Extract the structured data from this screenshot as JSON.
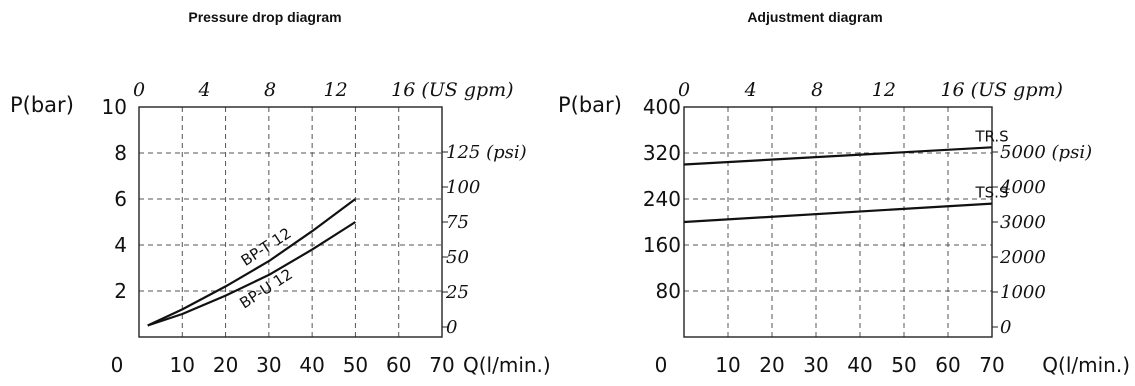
{
  "chart_data": [
    {
      "type": "line",
      "title": "Pressure drop diagram",
      "ylabel": "P(bar)",
      "xlabel": "Q(l/min.)",
      "x_origin_label": "0",
      "ylim": [
        0,
        10
      ],
      "xlim": [
        0,
        70
      ],
      "x_ticks": [
        10,
        20,
        30,
        40,
        50,
        60,
        70
      ],
      "y_ticks": [
        2,
        4,
        6,
        8,
        10
      ],
      "top_axis": {
        "ticks": [
          0,
          4,
          8,
          12
        ],
        "last_label": "16 (US gpm)"
      },
      "right_axis": {
        "ticks": [
          "0",
          "25",
          "50",
          "75",
          "100",
          "125 (psi)"
        ]
      },
      "grid": true,
      "series": [
        {
          "name": "BP-T 12",
          "x": [
            2,
            10,
            20,
            30,
            40,
            50
          ],
          "y": [
            0.5,
            1.2,
            2.2,
            3.3,
            4.6,
            6.0
          ]
        },
        {
          "name": "BP-U 12",
          "x": [
            2,
            10,
            20,
            30,
            40,
            50
          ],
          "y": [
            0.5,
            1.0,
            1.8,
            2.7,
            3.8,
            5.0
          ]
        }
      ]
    },
    {
      "type": "line",
      "title": "Adjustment diagram",
      "ylabel": "P(bar)",
      "xlabel": "Q(l/min.)",
      "x_origin_label": "0",
      "ylim": [
        0,
        400
      ],
      "xlim": [
        0,
        70
      ],
      "x_ticks": [
        10,
        20,
        30,
        40,
        50,
        60,
        70
      ],
      "y_ticks": [
        80,
        160,
        240,
        320,
        400
      ],
      "top_axis": {
        "ticks": [
          0,
          4,
          8,
          12
        ],
        "last_label": "16 (US gpm)"
      },
      "right_axis": {
        "ticks": [
          "0",
          "1000",
          "2000",
          "3000",
          "4000",
          "5000 (psi)"
        ]
      },
      "grid": true,
      "series": [
        {
          "name": "TR.S",
          "x": [
            0,
            70
          ],
          "y": [
            300,
            330
          ]
        },
        {
          "name": "TS.S",
          "x": [
            0,
            70
          ],
          "y": [
            200,
            232
          ]
        }
      ]
    }
  ]
}
